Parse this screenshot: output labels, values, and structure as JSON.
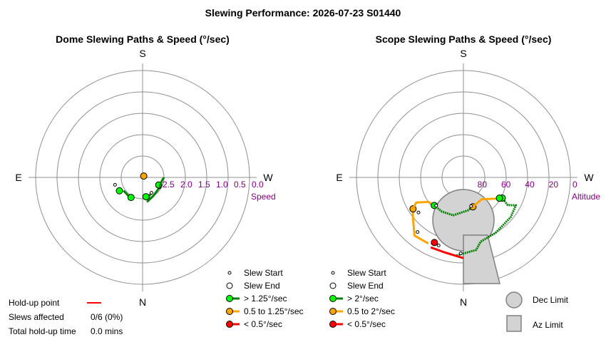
{
  "title": "Slewing Performance: 2026-07-23 S01440",
  "chart_data": [
    {
      "type": "polar-scatter",
      "title": "Dome Slewing Paths & Speed (°/sec)",
      "compass": {
        "top": "S",
        "left": "E",
        "right": "W",
        "bottom": "N"
      },
      "radial_axis_label": "Speed",
      "radial_ticks": [
        "2.5",
        "2.0",
        "1.5",
        "1.0",
        "0.5",
        "0.0"
      ],
      "radial_tick_values": [
        2.5,
        2.0,
        1.5,
        1.0,
        0.5,
        0.0
      ],
      "r_range": [
        3.0,
        0.0
      ],
      "slews": [
        {
          "start": {
            "az": 40,
            "r": 2.95
          },
          "end": {
            "az": 40,
            "r": 2.95
          },
          "path_color": "none",
          "end_color": "#ffa500"
        },
        {
          "start": {
            "az": 150,
            "r": 2.5
          },
          "end": {
            "az": 170,
            "r": 2.45
          },
          "path": [
            {
              "az": 150,
              "r": 2.5
            },
            {
              "az": 160,
              "r": 2.45
            },
            {
              "az": 170,
              "r": 2.45
            }
          ],
          "path_color": "#008000",
          "end_color": "#00ff00"
        },
        {
          "start": {
            "az": 120,
            "r": 2.45
          },
          "end": {
            "az": 115,
            "r": 2.5
          },
          "path": [
            {
              "az": 170,
              "r": 2.3
            },
            {
              "az": 150,
              "r": 2.4
            },
            {
              "az": 125,
              "r": 2.45
            },
            {
              "az": 118,
              "r": 2.5
            }
          ],
          "path_color": "#008000",
          "end_color": "#00ff00"
        },
        {
          "start": {
            "az": 255,
            "r": 2.2
          },
          "end": {
            "az": 240,
            "r": 2.25
          },
          "path": [
            {
              "az": 120,
              "r": 2.45
            },
            {
              "az": 100,
              "r": 2.45
            },
            {
              "az": 90,
              "r": 2.4
            }
          ],
          "path_color": "#008000",
          "end_color": "#00ff00"
        },
        {
          "start": {
            "az": 210,
            "r": 2.35
          },
          "end": {
            "az": 210,
            "r": 2.35
          },
          "path": [
            {
              "az": 235,
              "r": 2.35
            },
            {
              "az": 220,
              "r": 2.35
            },
            {
              "az": 205,
              "r": 2.35
            }
          ],
          "path_color": "#008000",
          "end_color": "#00ff00"
        }
      ],
      "legend": [
        {
          "label": "Slew Start",
          "marker": "start"
        },
        {
          "label": "Slew End",
          "marker": "end"
        },
        {
          "label": "> 1.25°/sec",
          "color": "#00ff00",
          "line": "#008000"
        },
        {
          "label": "0.5 to 1.25°/sec",
          "color": "#ffa500",
          "line": "#ffa500"
        },
        {
          "label": "< 0.5°/sec",
          "color": "#ff0000",
          "line": "#ff0000"
        }
      ]
    },
    {
      "type": "polar-scatter",
      "title": "Scope Slewing Paths & Speed (°/sec)",
      "compass": {
        "top": "S",
        "left": "E",
        "right": "W",
        "bottom": "N"
      },
      "radial_axis_label": "Altitude",
      "radial_ticks": [
        "80",
        "60",
        "40",
        "20",
        "0"
      ],
      "radial_tick_values": [
        80,
        60,
        40,
        20,
        0
      ],
      "r_range": [
        90,
        0
      ],
      "slews": [
        {
          "path": [
            {
              "az": 185,
              "alt": 24
            },
            {
              "az": 170,
              "alt": 28
            },
            {
              "az": 165,
              "alt": 34
            },
            {
              "az": 150,
              "alt": 36
            },
            {
              "az": 130,
              "alt": 38
            },
            {
              "az": 118,
              "alt": 40
            },
            {
              "az": 122,
              "alt": 46
            },
            {
              "az": 118,
              "alt": 53
            }
          ],
          "start": {
            "az": 182,
            "alt": 26
          },
          "end": {
            "az": 118,
            "alt": 53
          },
          "path_color": "#008000",
          "end_color": "#00ff00"
        },
        {
          "path": [
            {
              "az": 180,
              "alt": 22
            },
            {
              "az": 195,
              "alt": 25
            },
            {
              "az": 205,
              "alt": 25
            }
          ],
          "start": {
            "az": 200,
            "alt": 29
          },
          "end": {
            "az": 204,
            "alt": 30
          },
          "path_color": "#ff0000",
          "end_color": "#ff0000"
        },
        {
          "path": [
            {
              "az": 208,
              "alt": 27
            },
            {
              "az": 220,
              "alt": 26
            },
            {
              "az": 232,
              "alt": 36
            },
            {
              "az": 238,
              "alt": 40
            }
          ],
          "start": {
            "az": 220,
            "alt": 30
          },
          "end": {
            "az": 238,
            "alt": 40
          },
          "path_color": "#ffa500",
          "end_color": "#ffa500"
        },
        {
          "path": [
            {
              "az": 238,
              "alt": 40
            },
            {
              "az": 242,
              "alt": 45
            },
            {
              "az": 235,
              "alt": 54
            },
            {
              "az": 226,
              "alt": 56
            }
          ],
          "start": {
            "az": 232,
            "alt": 42
          },
          "end": {
            "az": 226,
            "alt": 56
          },
          "path_color": "#ffa500",
          "end_color": "#00ff00"
        },
        {
          "path": [
            {
              "az": 226,
              "alt": 56
            },
            {
              "az": 212,
              "alt": 56
            },
            {
              "az": 195,
              "alt": 57
            },
            {
              "az": 172,
              "alt": 62
            },
            {
              "az": 162,
              "alt": 64
            }
          ],
          "start": {
            "az": 224,
            "alt": 57
          },
          "end": {
            "az": 162,
            "alt": 64
          },
          "path_color": "#008000",
          "end_color": "#ffa500"
        },
        {
          "path": [
            {
              "az": 162,
              "alt": 64
            },
            {
              "az": 140,
              "alt": 66
            },
            {
              "az": 124,
              "alt": 58
            },
            {
              "az": 120,
              "alt": 55
            }
          ],
          "start": {
            "az": 165,
            "alt": 65
          },
          "end": {
            "az": 120,
            "alt": 55
          },
          "path_color": "#ffa500",
          "end_color": "#00ff00"
        }
      ],
      "limits": {
        "dec_limit_label": "Dec Limit",
        "az_limit_label": "Az Limit"
      },
      "legend": [
        {
          "label": "Slew Start",
          "marker": "start"
        },
        {
          "label": "Slew End",
          "marker": "end"
        },
        {
          "label": "> 2°/sec",
          "color": "#00ff00",
          "line": "#008000"
        },
        {
          "label": "0.5 to 2°/sec",
          "color": "#ffa500",
          "line": "#ffa500"
        },
        {
          "label": "< 0.5°/sec",
          "color": "#ff0000",
          "line": "#ff0000"
        }
      ]
    }
  ],
  "info": {
    "holdup_label": "Hold-up point",
    "holdup_color": "#ff0000",
    "slews_affected_label": "Slews affected",
    "slews_affected_value": "0/6 (0%)",
    "total_holdup_label": "Total hold-up time",
    "total_holdup_value": "0.0 mins"
  }
}
